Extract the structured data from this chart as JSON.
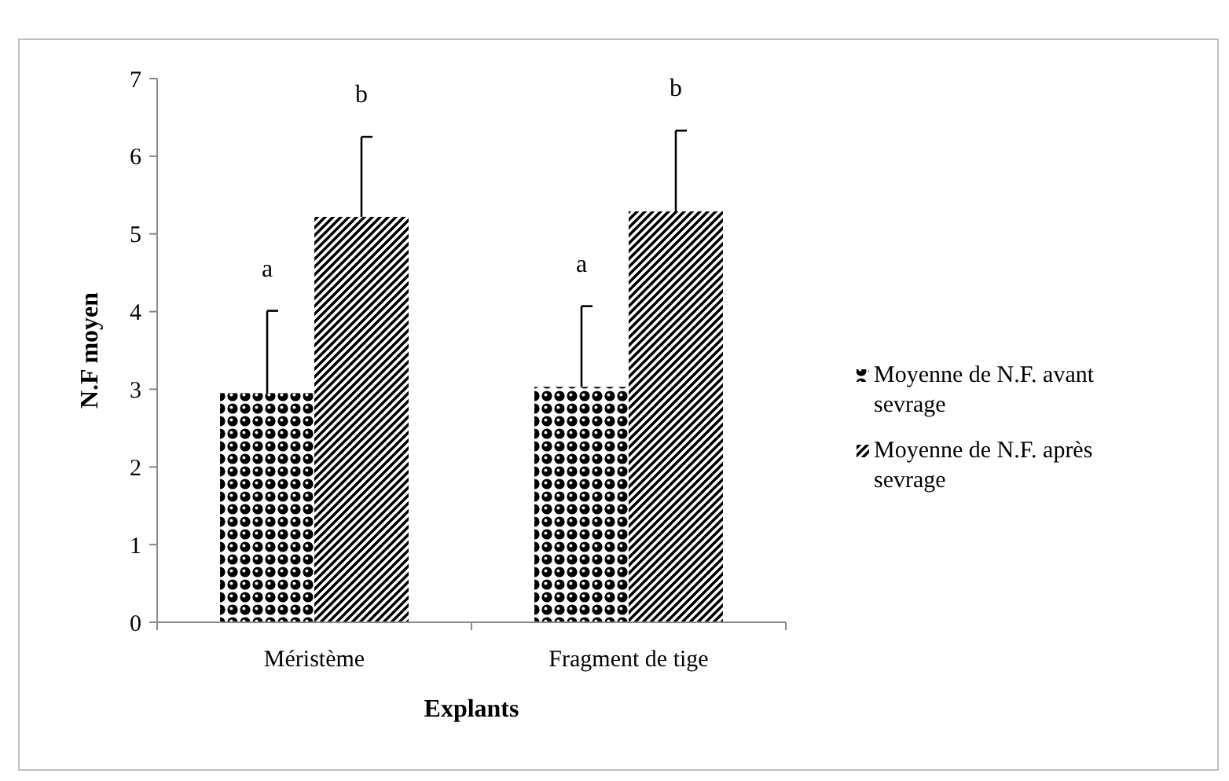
{
  "chart_data": {
    "type": "bar",
    "xlabel": "Explants",
    "ylabel": "N.F moyen",
    "categories": [
      "Méristème",
      "Fragment de tige"
    ],
    "series": [
      {
        "name": "Moyenne de N.F. avant sevrage",
        "color": "#000000",
        "values": [
          2.95,
          3.03
        ],
        "errors": [
          1.06,
          1.04
        ]
      },
      {
        "name": "Moyenne de N.F. après sevrage",
        "color": "#000000",
        "values": [
          5.22,
          5.29
        ],
        "errors": [
          1.03,
          1.04
        ]
      }
    ],
    "ylim": [
      0,
      7
    ],
    "yticks": [
      0,
      1,
      2,
      3,
      4,
      5,
      6,
      7
    ],
    "grid": false,
    "legend": "right",
    "annotations": [
      "a",
      "b",
      "a",
      "b"
    ]
  }
}
